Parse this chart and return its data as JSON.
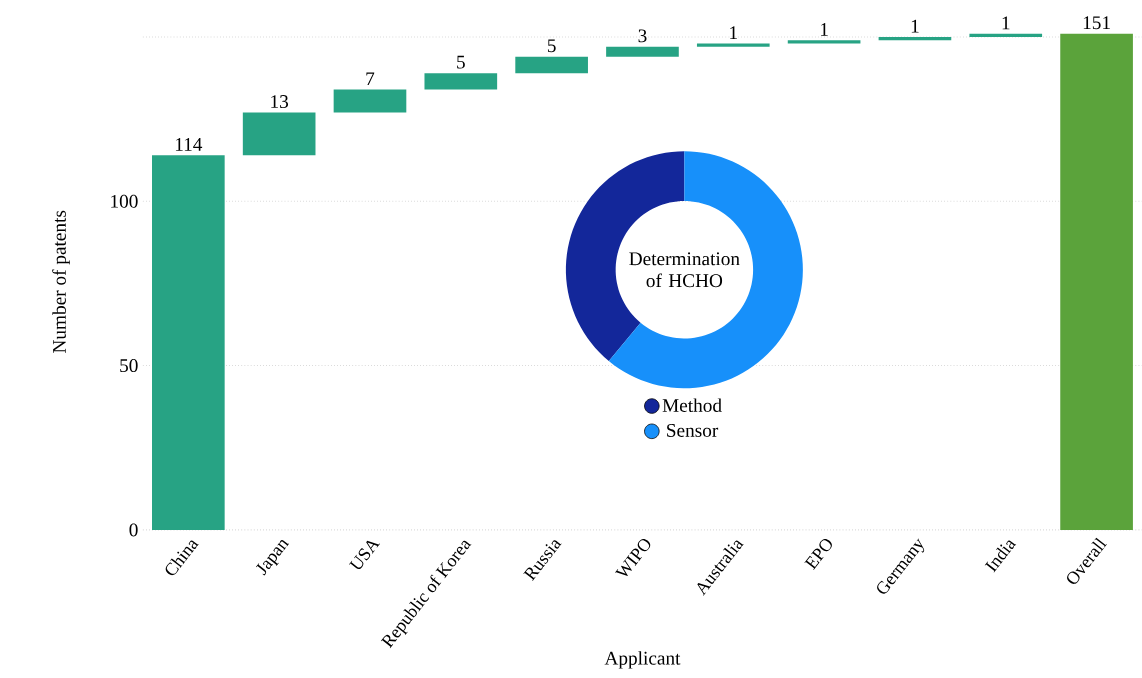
{
  "chart_data": [
    {
      "type": "bar",
      "xlabel": "Applicant",
      "ylabel": "Number of patents",
      "categories": [
        "China",
        "Japan",
        "USA",
        "Republic of Korea",
        "Russia",
        "WIPO",
        "Australia",
        "EPO",
        "Germany",
        "India",
        "Overall"
      ],
      "values": [
        114,
        13,
        7,
        5,
        5,
        3,
        1,
        1,
        1,
        1,
        151
      ],
      "base": [
        0,
        114,
        127,
        134,
        139,
        144,
        147,
        148,
        149,
        150,
        0
      ],
      "colors": [
        "#27a384",
        "#27a384",
        "#27a384",
        "#27a384",
        "#27a384",
        "#27a384",
        "#27a384",
        "#27a384",
        "#27a384",
        "#27a384",
        "#5ba33b"
      ],
      "ylim": [
        0,
        151
      ],
      "yticks": [
        0,
        50,
        100,
        {
          "value": 150,
          "label": null
        }
      ],
      "grid": "y",
      "data_labels": true
    },
    {
      "type": "donut",
      "title": "Determination of HCHO",
      "categories": [
        "Method",
        "Sensor"
      ],
      "values": [
        39,
        61
      ],
      "colors": [
        "#13279a",
        "#1790fa"
      ],
      "legend": "bottom"
    }
  ]
}
